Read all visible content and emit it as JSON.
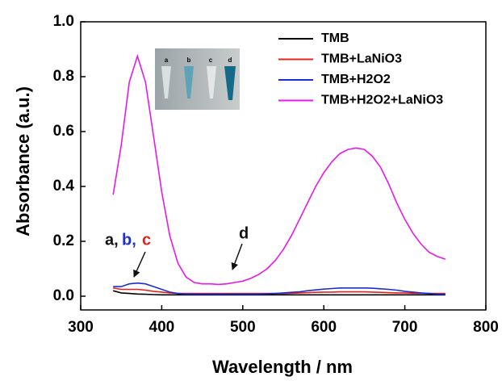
{
  "chart_data": {
    "type": "line",
    "xlabel": "Wavelength / nm",
    "ylabel": "Absorbance (a.u.)",
    "x": [
      340,
      350,
      360,
      370,
      380,
      390,
      400,
      410,
      420,
      430,
      440,
      450,
      460,
      470,
      480,
      490,
      500,
      510,
      520,
      530,
      540,
      550,
      560,
      570,
      580,
      590,
      600,
      610,
      620,
      630,
      640,
      650,
      660,
      670,
      680,
      690,
      700,
      710,
      720,
      730,
      740,
      750
    ],
    "series": [
      {
        "name": "TMB",
        "color": "#000000",
        "values": [
          0.02,
          0.012,
          0.01,
          0.008,
          0.007,
          0.006,
          0.005,
          0.005,
          0.005,
          0.005,
          0.005,
          0.005,
          0.005,
          0.005,
          0.005,
          0.005,
          0.005,
          0.005,
          0.005,
          0.005,
          0.005,
          0.005,
          0.005,
          0.005,
          0.005,
          0.005,
          0.005,
          0.005,
          0.005,
          0.005,
          0.005,
          0.005,
          0.005,
          0.005,
          0.005,
          0.005,
          0.005,
          0.005,
          0.005,
          0.005,
          0.005,
          0.005
        ]
      },
      {
        "name": "TMB+LaNiO3",
        "color": "#e8201c",
        "values": [
          0.03,
          0.025,
          0.025,
          0.025,
          0.022,
          0.018,
          0.015,
          0.012,
          0.01,
          0.01,
          0.01,
          0.01,
          0.01,
          0.01,
          0.01,
          0.01,
          0.01,
          0.01,
          0.01,
          0.01,
          0.01,
          0.01,
          0.011,
          0.012,
          0.013,
          0.014,
          0.015,
          0.015,
          0.016,
          0.016,
          0.016,
          0.016,
          0.015,
          0.014,
          0.013,
          0.012,
          0.012,
          0.011,
          0.011,
          0.01,
          0.01,
          0.01
        ]
      },
      {
        "name": "TMB+H2O2",
        "color": "#1c2fd0",
        "values": [
          0.035,
          0.035,
          0.045,
          0.048,
          0.045,
          0.035,
          0.025,
          0.015,
          0.01,
          0.008,
          0.008,
          0.008,
          0.008,
          0.008,
          0.008,
          0.008,
          0.008,
          0.008,
          0.008,
          0.009,
          0.01,
          0.012,
          0.014,
          0.016,
          0.02,
          0.023,
          0.026,
          0.028,
          0.03,
          0.03,
          0.03,
          0.03,
          0.029,
          0.027,
          0.025,
          0.022,
          0.018,
          0.015,
          0.012,
          0.01,
          0.008,
          0.007
        ]
      },
      {
        "name": "TMB+H2O2+LaNiO3",
        "color": "#e619e6",
        "values": [
          0.37,
          0.55,
          0.78,
          0.875,
          0.78,
          0.58,
          0.38,
          0.22,
          0.12,
          0.07,
          0.05,
          0.045,
          0.045,
          0.043,
          0.045,
          0.05,
          0.055,
          0.065,
          0.08,
          0.1,
          0.13,
          0.17,
          0.22,
          0.28,
          0.34,
          0.4,
          0.45,
          0.49,
          0.52,
          0.535,
          0.54,
          0.535,
          0.51,
          0.47,
          0.41,
          0.34,
          0.28,
          0.23,
          0.19,
          0.16,
          0.145,
          0.135
        ]
      }
    ],
    "xlim": [
      300,
      800
    ],
    "xticks": [
      300,
      400,
      500,
      600,
      700,
      800
    ],
    "ylim": [
      -0.05,
      1.0
    ],
    "yticks": [
      {
        "value": 0,
        "label": "0.0"
      },
      0.2,
      0.4,
      0.6,
      0.8,
      {
        "value": 1,
        "label": "1.0"
      }
    ],
    "legend": "upper right",
    "annotations": [
      {
        "text": "a,",
        "color": "#111111"
      },
      {
        "text": "b,",
        "color": "#1c2fd0"
      },
      {
        "text": "c",
        "color": "#e8201c"
      },
      {
        "text": "d",
        "color": "#111111"
      }
    ],
    "inset_labels": [
      "a",
      "b",
      "c",
      "d"
    ]
  }
}
